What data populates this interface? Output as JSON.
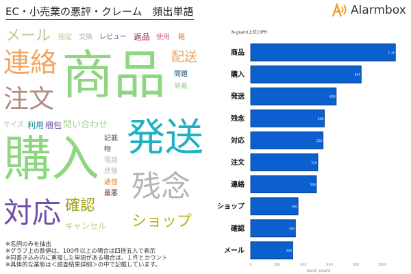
{
  "header": {
    "title": "EC・小売業の悪評・クレーム　頻出単語",
    "logo_text": "Alarmbox",
    "logo_color": "#f0a020"
  },
  "word_cloud": {
    "words": [
      {
        "text": "メール",
        "color": "#c9c48e"
      },
      {
        "text": "指定",
        "color": "#9ccf8c"
      },
      {
        "text": "交換",
        "color": "#b0b0b0"
      },
      {
        "text": "レビュー",
        "color": "#6a4c93"
      },
      {
        "text": "返品",
        "color": "#9b1d30"
      },
      {
        "text": "商品",
        "color": "#8fd680"
      },
      {
        "text": "使用",
        "color": "#e0607a"
      },
      {
        "text": "箱",
        "color": "#d8781a"
      },
      {
        "text": "配送",
        "color": "#eba262"
      },
      {
        "text": "連絡",
        "color": "#f4a460"
      },
      {
        "text": "注文",
        "color": "#b38a82"
      },
      {
        "text": "問題",
        "color": "#1a5276"
      },
      {
        "text": "到着",
        "color": "#9ccf8c"
      },
      {
        "text": "問い合わせ",
        "color": "#9ccf8c"
      },
      {
        "text": "発送",
        "color": "#1fb1c1"
      },
      {
        "text": "サイズ",
        "color": "#b0b0b0"
      },
      {
        "text": "購入",
        "color": "#8fd680"
      },
      {
        "text": "利用",
        "color": "#1a8a9a"
      },
      {
        "text": "記載",
        "color": "#555555"
      },
      {
        "text": "梱包",
        "color": "#6a4c93"
      },
      {
        "text": "物",
        "color": "#6b3a1a"
      },
      {
        "text": "電話",
        "color": "#b8b8b8"
      },
      {
        "text": "状態",
        "color": "#b8b8b8"
      },
      {
        "text": "残念",
        "color": "#b4b4b4"
      },
      {
        "text": "確認",
        "color": "#9aa010"
      },
      {
        "text": "対応",
        "color": "#7050a8"
      },
      {
        "text": "返信",
        "color": "#d8781a"
      },
      {
        "text": "キャンセル",
        "color": "#c9c48e"
      },
      {
        "text": "最悪",
        "color": "#6b3a1a"
      },
      {
        "text": "ショップ",
        "color": "#b4b012"
      }
    ]
  },
  "notes": [
    "※名詞のみを抽出",
    "※グラフ上の数値は、100件以上の場合は四捨五入で表示",
    "※同書き込み内に重複した単語がある場合は、１件とカウント",
    "※具体的な業態は＜調査結果詳細＞の中で記載しています。"
  ],
  "chart_data": {
    "type": "bar",
    "orientation": "horizontal",
    "title": "N-gram(上位10件)",
    "xlabel": "word_count",
    "ylabel": "",
    "categories": [
      "商品",
      "購入",
      "発送",
      "残念",
      "対応",
      "注文",
      "連絡",
      "ショップ",
      "確認",
      "メール"
    ],
    "values": [
      1100,
      840,
      650,
      560,
      550,
      510,
      500,
      360,
      340,
      320
    ],
    "data_labels": [
      "1.1k",
      "840",
      "650",
      "560",
      "550",
      "510",
      "500",
      "360",
      "340",
      "320"
    ],
    "xticks": [
      "0",
      "200",
      "400",
      "600",
      "800",
      "1000"
    ],
    "xlim": [
      0,
      1150
    ],
    "grid": false,
    "bar_color": "#0b5fcf",
    "bar_edge_color": "#0a3f8c"
  }
}
